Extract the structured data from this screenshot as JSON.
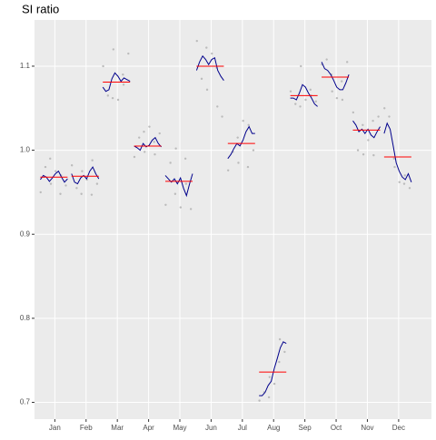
{
  "chart_data": {
    "type": "subseries",
    "title": "SI ratio",
    "ylim": [
      0.68,
      1.155
    ],
    "yticks": [
      0.7,
      0.8,
      0.9,
      {
        "value": 1.0,
        "label": "1.0"
      },
      1.1
    ],
    "line_color": "#00008b",
    "mean_color": "#ff0000",
    "point_color": "#bbbbbb",
    "grid": true,
    "series": [
      {
        "name": "Jan",
        "mean": 0.968,
        "values": [
          0.965,
          0.97,
          0.968,
          0.963,
          0.967,
          0.972,
          0.975,
          0.968,
          0.962,
          0.966
        ],
        "points": [
          0.95,
          0.98,
          0.99,
          0.96,
          0.975,
          0.948,
          0.97,
          0.958
        ]
      },
      {
        "name": "Feb",
        "mean": 0.969,
        "values": [
          0.972,
          0.962,
          0.96,
          0.967,
          0.97,
          0.966,
          0.975,
          0.98,
          0.972,
          0.966
        ],
        "points": [
          0.982,
          0.955,
          0.948,
          0.975,
          0.965,
          0.947,
          0.988,
          0.96
        ]
      },
      {
        "name": "Mar",
        "mean": 1.081,
        "values": [
          1.075,
          1.07,
          1.072,
          1.085,
          1.092,
          1.088,
          1.082,
          1.086,
          1.084,
          1.082
        ],
        "points": [
          1.1,
          1.065,
          1.062,
          1.12,
          1.06,
          1.09,
          1.078,
          1.115
        ]
      },
      {
        "name": "Apr",
        "mean": 1.005,
        "values": [
          1.005,
          1.003,
          1.0,
          1.008,
          1.004,
          1.006,
          1.012,
          1.015,
          1.008,
          1.004
        ],
        "points": [
          0.992,
          1.015,
          1.022,
          0.998,
          1.028,
          1.01,
          0.995,
          1.02
        ]
      },
      {
        "name": "May",
        "mean": 0.963,
        "values": [
          0.97,
          0.966,
          0.962,
          0.966,
          0.96,
          0.967,
          0.955,
          0.946,
          0.96,
          0.972
        ],
        "points": [
          0.935,
          0.985,
          0.948,
          1.002,
          0.932,
          0.99,
          0.96,
          0.93
        ]
      },
      {
        "name": "Jun",
        "mean": 1.1,
        "values": [
          1.095,
          1.105,
          1.112,
          1.108,
          1.102,
          1.108,
          1.11,
          1.095,
          1.088,
          1.083
        ],
        "points": [
          1.13,
          1.085,
          1.122,
          1.072,
          1.115,
          1.098,
          1.052,
          1.04
        ]
      },
      {
        "name": "Jul",
        "mean": 1.008,
        "values": [
          0.99,
          0.995,
          1.002,
          1.008,
          1.005,
          1.012,
          1.022,
          1.028,
          1.02,
          1.02
        ],
        "points": [
          0.976,
          0.998,
          1.015,
          0.985,
          1.035,
          0.98,
          1.03,
          1.0
        ]
      },
      {
        "name": "Aug",
        "mean": 0.736,
        "values": [
          0.708,
          0.708,
          0.712,
          0.72,
          0.725,
          0.74,
          0.752,
          0.765,
          0.772,
          0.77
        ],
        "points": [
          0.702,
          0.712,
          0.706,
          0.73,
          0.722,
          0.748,
          0.775,
          0.76
        ]
      },
      {
        "name": "Sep",
        "mean": 1.065,
        "values": [
          1.062,
          1.062,
          1.06,
          1.068,
          1.078,
          1.075,
          1.068,
          1.062,
          1.055,
          1.052
        ],
        "points": [
          1.07,
          1.055,
          1.052,
          1.1,
          1.06,
          1.072,
          1.065,
          1.058
        ]
      },
      {
        "name": "Oct",
        "mean": 1.087,
        "values": [
          1.105,
          1.097,
          1.095,
          1.09,
          1.083,
          1.075,
          1.072,
          1.072,
          1.08,
          1.09
        ],
        "points": [
          1.102,
          1.108,
          1.09,
          1.07,
          1.062,
          1.082,
          1.06,
          1.105
        ]
      },
      {
        "name": "Nov",
        "mean": 1.024,
        "values": [
          1.035,
          1.03,
          1.022,
          1.025,
          1.02,
          1.025,
          1.018,
          1.015,
          1.022,
          1.028
        ],
        "points": [
          1.045,
          1.0,
          1.03,
          0.995,
          1.012,
          1.035,
          0.994,
          1.04
        ]
      },
      {
        "name": "Dec",
        "mean": 0.992,
        "values": [
          1.02,
          1.032,
          1.025,
          1.005,
          0.985,
          0.975,
          0.968,
          0.965,
          0.972,
          0.962
        ],
        "points": [
          1.05,
          1.04,
          0.99,
          0.98,
          0.962,
          0.96,
          0.97,
          0.955
        ]
      }
    ]
  }
}
